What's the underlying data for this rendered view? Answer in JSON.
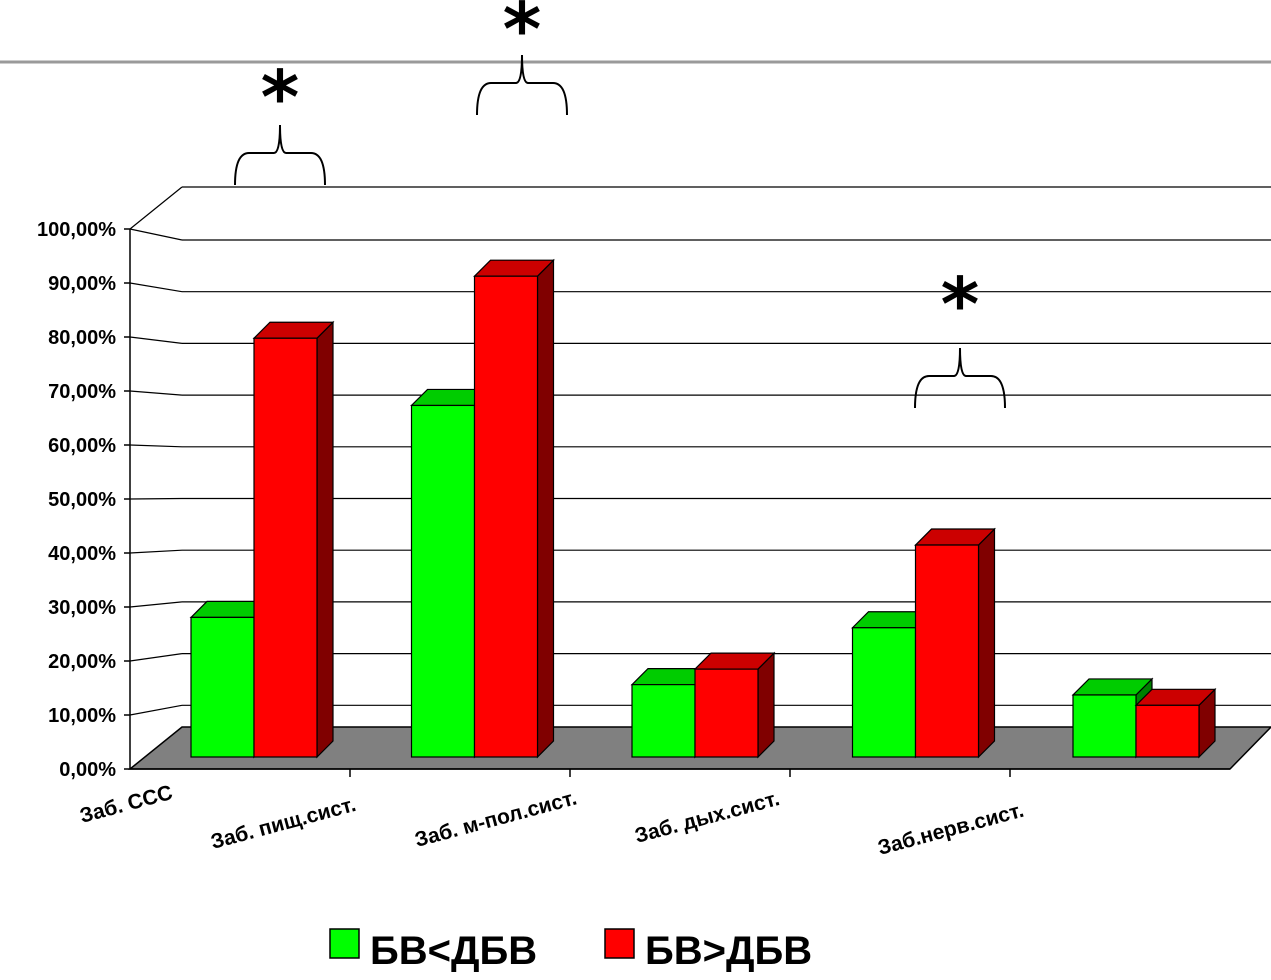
{
  "chart_data": {
    "type": "bar",
    "title": "",
    "xlabel": "",
    "ylabel": "",
    "ylim": [
      0,
      1.0
    ],
    "y_ticks": [
      "0,00%",
      "10,00%",
      "20,00%",
      "30,00%",
      "40,00%",
      "50,00%",
      "60,00%",
      "70,00%",
      "80,00%",
      "90,00%",
      "100,00%"
    ],
    "categories": [
      "Заб. ССС",
      "Заб. пищ.сист.",
      "Заб. м-пол.сист.",
      "Заб. дых.сист.",
      "Заб.нерв.сист."
    ],
    "series": [
      {
        "name": "БВ<ДБВ",
        "values": [
          0.27,
          0.68,
          0.14,
          0.25,
          0.12
        ]
      },
      {
        "name": "БВ>ДБВ",
        "values": [
          0.81,
          0.93,
          0.17,
          0.41,
          0.1
        ]
      }
    ],
    "significance_markers": [
      {
        "category": "Заб. ССС",
        "symbol": "*"
      },
      {
        "category": "Заб. пищ.сист.",
        "symbol": "*"
      },
      {
        "category": "Заб. дых.сист.",
        "symbol": "*"
      }
    ],
    "grid": true,
    "legend_position": "bottom",
    "colors": {
      "series_0_front": "#00ff00",
      "series_0_top": "#00cc00",
      "series_0_side": "#008000",
      "series_1_front": "#ff0000",
      "series_1_top": "#cc0000",
      "series_1_side": "#800000",
      "floor": "#808080",
      "background": "#ffffff"
    }
  }
}
